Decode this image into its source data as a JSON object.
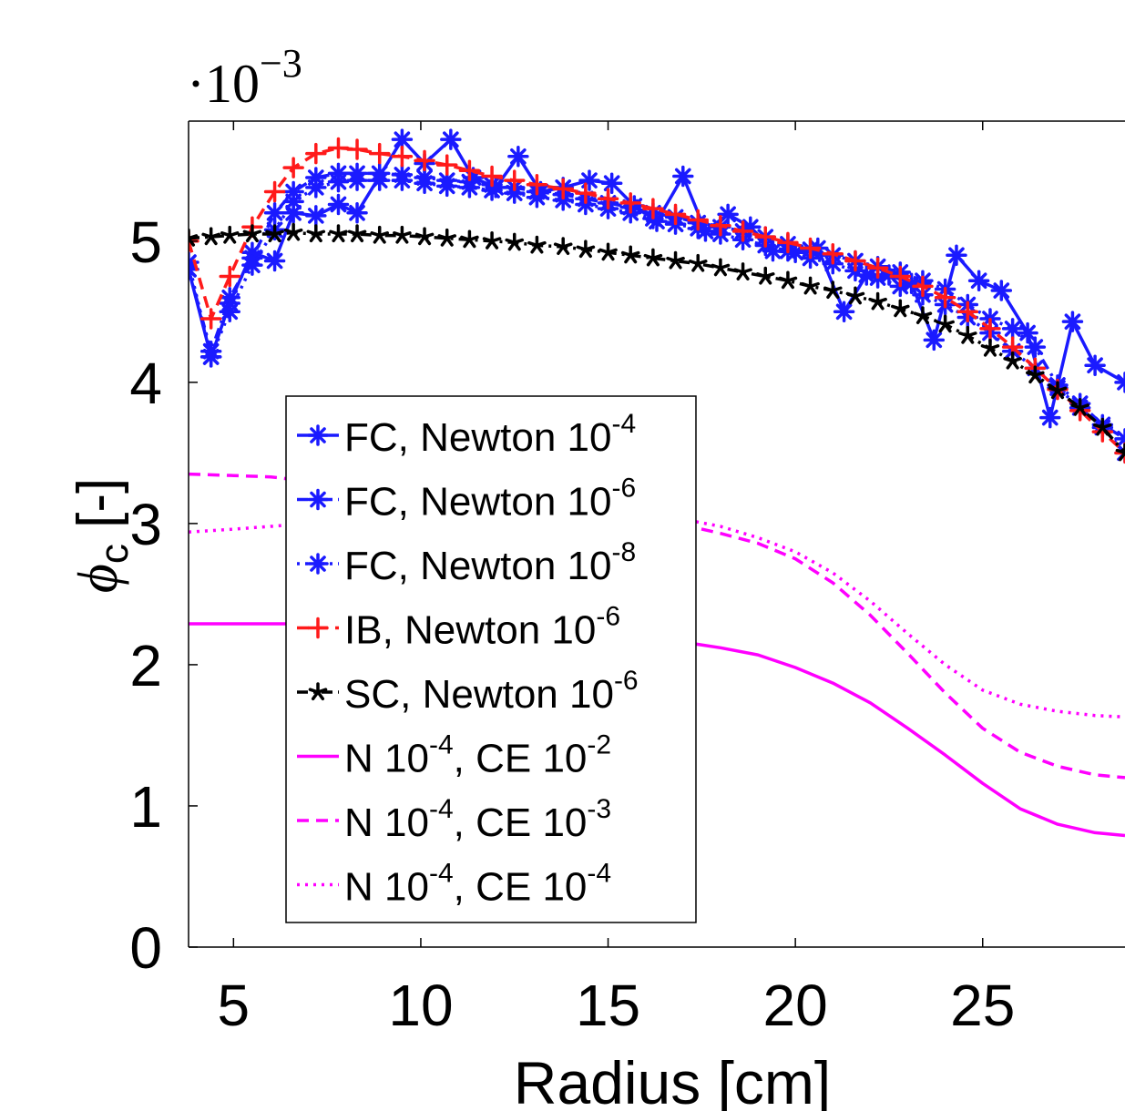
{
  "chart_data": {
    "type": "line",
    "multiplier_label": {
      "base": "·10",
      "exp": "−3"
    },
    "xlabel": "Radius [cm]",
    "ylabel": {
      "main": "ϕ",
      "sub": "c",
      "unit": " [-]"
    },
    "xlim": [
      3.8,
      28.8
    ],
    "ylim": [
      0,
      5.85
    ],
    "xticks": [
      5,
      10,
      15,
      20,
      25
    ],
    "xtick_labels": [
      "5",
      "10",
      "15",
      "20",
      "25"
    ],
    "yticks": [
      0,
      1,
      2,
      3,
      4,
      5
    ],
    "ytick_labels": [
      "0",
      "1",
      "2",
      "3",
      "4",
      "5"
    ],
    "grid": false,
    "legend_position": "center-left",
    "series": [
      {
        "name": "FC, Newton 10",
        "name_exp": "-4",
        "color": "#1a1aff",
        "dash": "solid",
        "marker": "asterisk",
        "points": [
          [
            3.8,
            4.8
          ],
          [
            4.4,
            4.18
          ],
          [
            4.9,
            4.56
          ],
          [
            5.5,
            4.92
          ],
          [
            6.1,
            4.86
          ],
          [
            6.6,
            5.2
          ],
          [
            7.2,
            5.18
          ],
          [
            7.8,
            5.26
          ],
          [
            8.3,
            5.2
          ],
          [
            9.5,
            5.72
          ],
          [
            10.1,
            5.55
          ],
          [
            10.8,
            5.72
          ],
          [
            11.4,
            5.45
          ],
          [
            12.0,
            5.38
          ],
          [
            12.6,
            5.6
          ],
          [
            13.2,
            5.35
          ],
          [
            13.8,
            5.38
          ],
          [
            14.5,
            5.43
          ],
          [
            15.1,
            5.41
          ],
          [
            15.7,
            5.25
          ],
          [
            16.3,
            5.14
          ],
          [
            17.0,
            5.46
          ],
          [
            17.6,
            5.07
          ],
          [
            18.2,
            5.19
          ],
          [
            18.8,
            5.1
          ],
          [
            19.4,
            4.93
          ],
          [
            20.0,
            4.92
          ],
          [
            20.6,
            4.95
          ],
          [
            21.3,
            4.5
          ],
          [
            21.9,
            4.76
          ],
          [
            22.5,
            4.76
          ],
          [
            23.1,
            4.7
          ],
          [
            23.7,
            4.3
          ],
          [
            24.3,
            4.9
          ],
          [
            24.9,
            4.72
          ],
          [
            25.5,
            4.65
          ],
          [
            26.2,
            4.35
          ],
          [
            26.8,
            3.75
          ],
          [
            27.4,
            4.43
          ],
          [
            28.0,
            4.12
          ],
          [
            28.8,
            4.0
          ]
        ]
      },
      {
        "name": "FC, Newton 10",
        "name_exp": "-6",
        "color": "#1a1aff",
        "dash": "dashdot",
        "marker": "asterisk",
        "points": [
          [
            3.8,
            4.8
          ],
          [
            4.4,
            4.22
          ],
          [
            4.9,
            4.6
          ],
          [
            5.5,
            4.88
          ],
          [
            6.1,
            5.2
          ],
          [
            6.6,
            5.35
          ],
          [
            7.2,
            5.45
          ],
          [
            7.8,
            5.48
          ],
          [
            8.3,
            5.48
          ],
          [
            8.9,
            5.48
          ],
          [
            9.5,
            5.47
          ],
          [
            10.1,
            5.45
          ],
          [
            10.7,
            5.43
          ],
          [
            11.3,
            5.42
          ],
          [
            11.9,
            5.4
          ],
          [
            12.5,
            5.38
          ],
          [
            13.1,
            5.35
          ],
          [
            13.8,
            5.33
          ],
          [
            14.4,
            5.3
          ],
          [
            15.0,
            5.27
          ],
          [
            15.6,
            5.24
          ],
          [
            16.2,
            5.2
          ],
          [
            16.8,
            5.17
          ],
          [
            17.4,
            5.13
          ],
          [
            18.0,
            5.1
          ],
          [
            18.6,
            5.07
          ],
          [
            19.2,
            5.03
          ],
          [
            19.8,
            4.98
          ],
          [
            20.4,
            4.94
          ],
          [
            21.0,
            4.9
          ],
          [
            21.6,
            4.86
          ],
          [
            22.2,
            4.82
          ],
          [
            22.8,
            4.78
          ],
          [
            23.4,
            4.72
          ],
          [
            24.0,
            4.66
          ],
          [
            24.6,
            4.55
          ],
          [
            25.2,
            4.45
          ],
          [
            25.8,
            4.38
          ],
          [
            26.4,
            4.25
          ],
          [
            27.0,
            3.98
          ],
          [
            27.6,
            3.85
          ],
          [
            28.2,
            3.7
          ],
          [
            28.8,
            3.6
          ]
        ]
      },
      {
        "name": "FC, Newton 10",
        "name_exp": "-8",
        "color": "#1a1aff",
        "dash": "dotted",
        "marker": "asterisk",
        "points": [
          [
            3.8,
            4.85
          ],
          [
            4.4,
            4.18
          ],
          [
            4.9,
            4.5
          ],
          [
            5.5,
            4.83
          ],
          [
            6.1,
            5.08
          ],
          [
            6.6,
            5.28
          ],
          [
            7.2,
            5.38
          ],
          [
            7.8,
            5.42
          ],
          [
            8.3,
            5.43
          ],
          [
            8.9,
            5.43
          ],
          [
            9.5,
            5.43
          ],
          [
            10.1,
            5.41
          ],
          [
            10.7,
            5.39
          ],
          [
            11.3,
            5.38
          ],
          [
            11.9,
            5.36
          ],
          [
            12.5,
            5.34
          ],
          [
            13.1,
            5.31
          ],
          [
            13.8,
            5.29
          ],
          [
            14.4,
            5.26
          ],
          [
            15.0,
            5.23
          ],
          [
            15.6,
            5.2
          ],
          [
            16.2,
            5.16
          ],
          [
            16.8,
            5.12
          ],
          [
            17.4,
            5.09
          ],
          [
            18.0,
            5.05
          ],
          [
            18.6,
            5.01
          ],
          [
            19.2,
            4.97
          ],
          [
            19.8,
            4.93
          ],
          [
            20.4,
            4.88
          ],
          [
            21.0,
            4.84
          ],
          [
            21.6,
            4.79
          ],
          [
            22.2,
            4.74
          ],
          [
            22.8,
            4.68
          ],
          [
            23.4,
            4.62
          ],
          [
            24.0,
            4.55
          ],
          [
            24.6,
            4.46
          ],
          [
            25.2,
            4.35
          ],
          [
            25.8,
            4.22
          ],
          [
            26.4,
            4.1
          ],
          [
            27.0,
            3.96
          ],
          [
            27.6,
            3.82
          ],
          [
            28.2,
            3.68
          ],
          [
            28.8,
            3.5
          ]
        ]
      },
      {
        "name": "IB, Newton 10",
        "name_exp": "-6",
        "color": "#ff1a1a",
        "dash": "dashed",
        "marker": "plus",
        "points": [
          [
            3.8,
            5.0
          ],
          [
            4.4,
            4.45
          ],
          [
            4.9,
            4.75
          ],
          [
            5.5,
            5.1
          ],
          [
            6.1,
            5.35
          ],
          [
            6.6,
            5.52
          ],
          [
            7.2,
            5.62
          ],
          [
            7.8,
            5.66
          ],
          [
            8.3,
            5.65
          ],
          [
            8.9,
            5.62
          ],
          [
            9.5,
            5.6
          ],
          [
            10.1,
            5.57
          ],
          [
            10.7,
            5.54
          ],
          [
            11.3,
            5.5
          ],
          [
            11.9,
            5.46
          ],
          [
            12.5,
            5.43
          ],
          [
            13.1,
            5.4
          ],
          [
            13.8,
            5.37
          ],
          [
            14.4,
            5.34
          ],
          [
            15.0,
            5.3
          ],
          [
            15.6,
            5.27
          ],
          [
            16.2,
            5.23
          ],
          [
            16.8,
            5.19
          ],
          [
            17.4,
            5.15
          ],
          [
            18.0,
            5.11
          ],
          [
            18.6,
            5.07
          ],
          [
            19.2,
            5.03
          ],
          [
            19.8,
            4.99
          ],
          [
            20.4,
            4.95
          ],
          [
            21.0,
            4.91
          ],
          [
            21.6,
            4.86
          ],
          [
            22.2,
            4.81
          ],
          [
            22.8,
            4.75
          ],
          [
            23.4,
            4.68
          ],
          [
            24.0,
            4.6
          ],
          [
            24.6,
            4.5
          ],
          [
            25.2,
            4.38
          ],
          [
            25.8,
            4.25
          ],
          [
            26.4,
            4.1
          ],
          [
            27.0,
            3.95
          ],
          [
            27.6,
            3.8
          ],
          [
            28.2,
            3.65
          ],
          [
            28.8,
            3.5
          ]
        ]
      },
      {
        "name": "SC, Newton 10",
        "name_exp": "-6",
        "color": "#000000",
        "dash": "dashdot",
        "marker": "star",
        "points": [
          [
            3.8,
            5.02
          ],
          [
            4.4,
            5.03
          ],
          [
            4.9,
            5.04
          ],
          [
            5.5,
            5.05
          ],
          [
            6.1,
            5.05
          ],
          [
            6.6,
            5.06
          ],
          [
            7.2,
            5.05
          ],
          [
            7.8,
            5.05
          ],
          [
            8.3,
            5.05
          ],
          [
            8.9,
            5.04
          ],
          [
            9.5,
            5.04
          ],
          [
            10.1,
            5.03
          ],
          [
            10.7,
            5.02
          ],
          [
            11.3,
            5.01
          ],
          [
            11.9,
            5.0
          ],
          [
            12.5,
            4.99
          ],
          [
            13.1,
            4.97
          ],
          [
            13.8,
            4.96
          ],
          [
            14.4,
            4.94
          ],
          [
            15.0,
            4.92
          ],
          [
            15.6,
            4.9
          ],
          [
            16.2,
            4.88
          ],
          [
            16.8,
            4.86
          ],
          [
            17.4,
            4.84
          ],
          [
            18.0,
            4.81
          ],
          [
            18.6,
            4.78
          ],
          [
            19.2,
            4.75
          ],
          [
            19.8,
            4.72
          ],
          [
            20.4,
            4.68
          ],
          [
            21.0,
            4.65
          ],
          [
            21.6,
            4.61
          ],
          [
            22.2,
            4.57
          ],
          [
            22.8,
            4.52
          ],
          [
            23.4,
            4.47
          ],
          [
            24.0,
            4.41
          ],
          [
            24.6,
            4.33
          ],
          [
            25.2,
            4.24
          ],
          [
            25.8,
            4.15
          ],
          [
            26.4,
            4.05
          ],
          [
            27.0,
            3.94
          ],
          [
            27.6,
            3.82
          ],
          [
            28.2,
            3.68
          ],
          [
            28.8,
            3.5
          ]
        ]
      },
      {
        "name": "N 10",
        "name_exp": "-4",
        "name_tail": ", CE 10",
        "name_tail_exp": "-2",
        "color": "#ff00ff",
        "dash": "solid",
        "marker": "none",
        "points": [
          [
            3.8,
            2.29
          ],
          [
            5.0,
            2.29
          ],
          [
            6.0,
            2.29
          ],
          [
            7.0,
            2.29
          ],
          [
            8.0,
            2.28
          ],
          [
            9.0,
            2.27
          ],
          [
            10.0,
            2.26
          ],
          [
            11.0,
            2.25
          ],
          [
            12.0,
            2.24
          ],
          [
            13.0,
            2.22
          ],
          [
            14.0,
            2.21
          ],
          [
            15.0,
            2.19
          ],
          [
            16.0,
            2.18
          ],
          [
            17.0,
            2.16
          ],
          [
            18.0,
            2.12
          ],
          [
            19.0,
            2.07
          ],
          [
            20.0,
            1.98
          ],
          [
            21.0,
            1.87
          ],
          [
            22.0,
            1.73
          ],
          [
            23.0,
            1.55
          ],
          [
            24.0,
            1.36
          ],
          [
            25.0,
            1.16
          ],
          [
            26.0,
            0.98
          ],
          [
            27.0,
            0.87
          ],
          [
            28.0,
            0.81
          ],
          [
            28.8,
            0.79
          ]
        ]
      },
      {
        "name": "N 10",
        "name_exp": "-4",
        "name_tail": ", CE 10",
        "name_tail_exp": "-3",
        "color": "#ff00ff",
        "dash": "dashed",
        "marker": "none",
        "points": [
          [
            3.8,
            3.35
          ],
          [
            5.0,
            3.34
          ],
          [
            6.0,
            3.33
          ],
          [
            7.0,
            3.3
          ],
          [
            8.0,
            3.25
          ],
          [
            9.0,
            3.2
          ],
          [
            10.0,
            3.16
          ],
          [
            11.0,
            3.13
          ],
          [
            12.0,
            3.1
          ],
          [
            13.0,
            3.08
          ],
          [
            14.0,
            3.06
          ],
          [
            15.0,
            3.04
          ],
          [
            16.0,
            3.02
          ],
          [
            17.0,
            2.99
          ],
          [
            18.0,
            2.93
          ],
          [
            19.0,
            2.86
          ],
          [
            20.0,
            2.75
          ],
          [
            21.0,
            2.58
          ],
          [
            22.0,
            2.35
          ],
          [
            23.0,
            2.08
          ],
          [
            24.0,
            1.8
          ],
          [
            25.0,
            1.55
          ],
          [
            26.0,
            1.38
          ],
          [
            27.0,
            1.28
          ],
          [
            28.0,
            1.22
          ],
          [
            28.8,
            1.2
          ]
        ]
      },
      {
        "name": "N 10",
        "name_exp": "-4",
        "name_tail": ", CE 10",
        "name_tail_exp": "-4",
        "color": "#ff00ff",
        "dash": "dotted",
        "marker": "none",
        "points": [
          [
            3.8,
            2.94
          ],
          [
            5.0,
            2.96
          ],
          [
            6.0,
            2.98
          ],
          [
            7.0,
            3.0
          ],
          [
            8.0,
            3.02
          ],
          [
            9.0,
            3.03
          ],
          [
            10.0,
            3.04
          ],
          [
            11.0,
            3.05
          ],
          [
            12.0,
            3.06
          ],
          [
            13.0,
            3.06
          ],
          [
            14.0,
            3.06
          ],
          [
            15.0,
            3.06
          ],
          [
            16.0,
            3.05
          ],
          [
            17.0,
            3.03
          ],
          [
            18.0,
            2.98
          ],
          [
            19.0,
            2.9
          ],
          [
            20.0,
            2.8
          ],
          [
            21.0,
            2.65
          ],
          [
            22.0,
            2.45
          ],
          [
            23.0,
            2.22
          ],
          [
            24.0,
            2.0
          ],
          [
            25.0,
            1.82
          ],
          [
            26.0,
            1.72
          ],
          [
            27.0,
            1.67
          ],
          [
            28.0,
            1.64
          ],
          [
            28.8,
            1.63
          ]
        ]
      }
    ]
  }
}
